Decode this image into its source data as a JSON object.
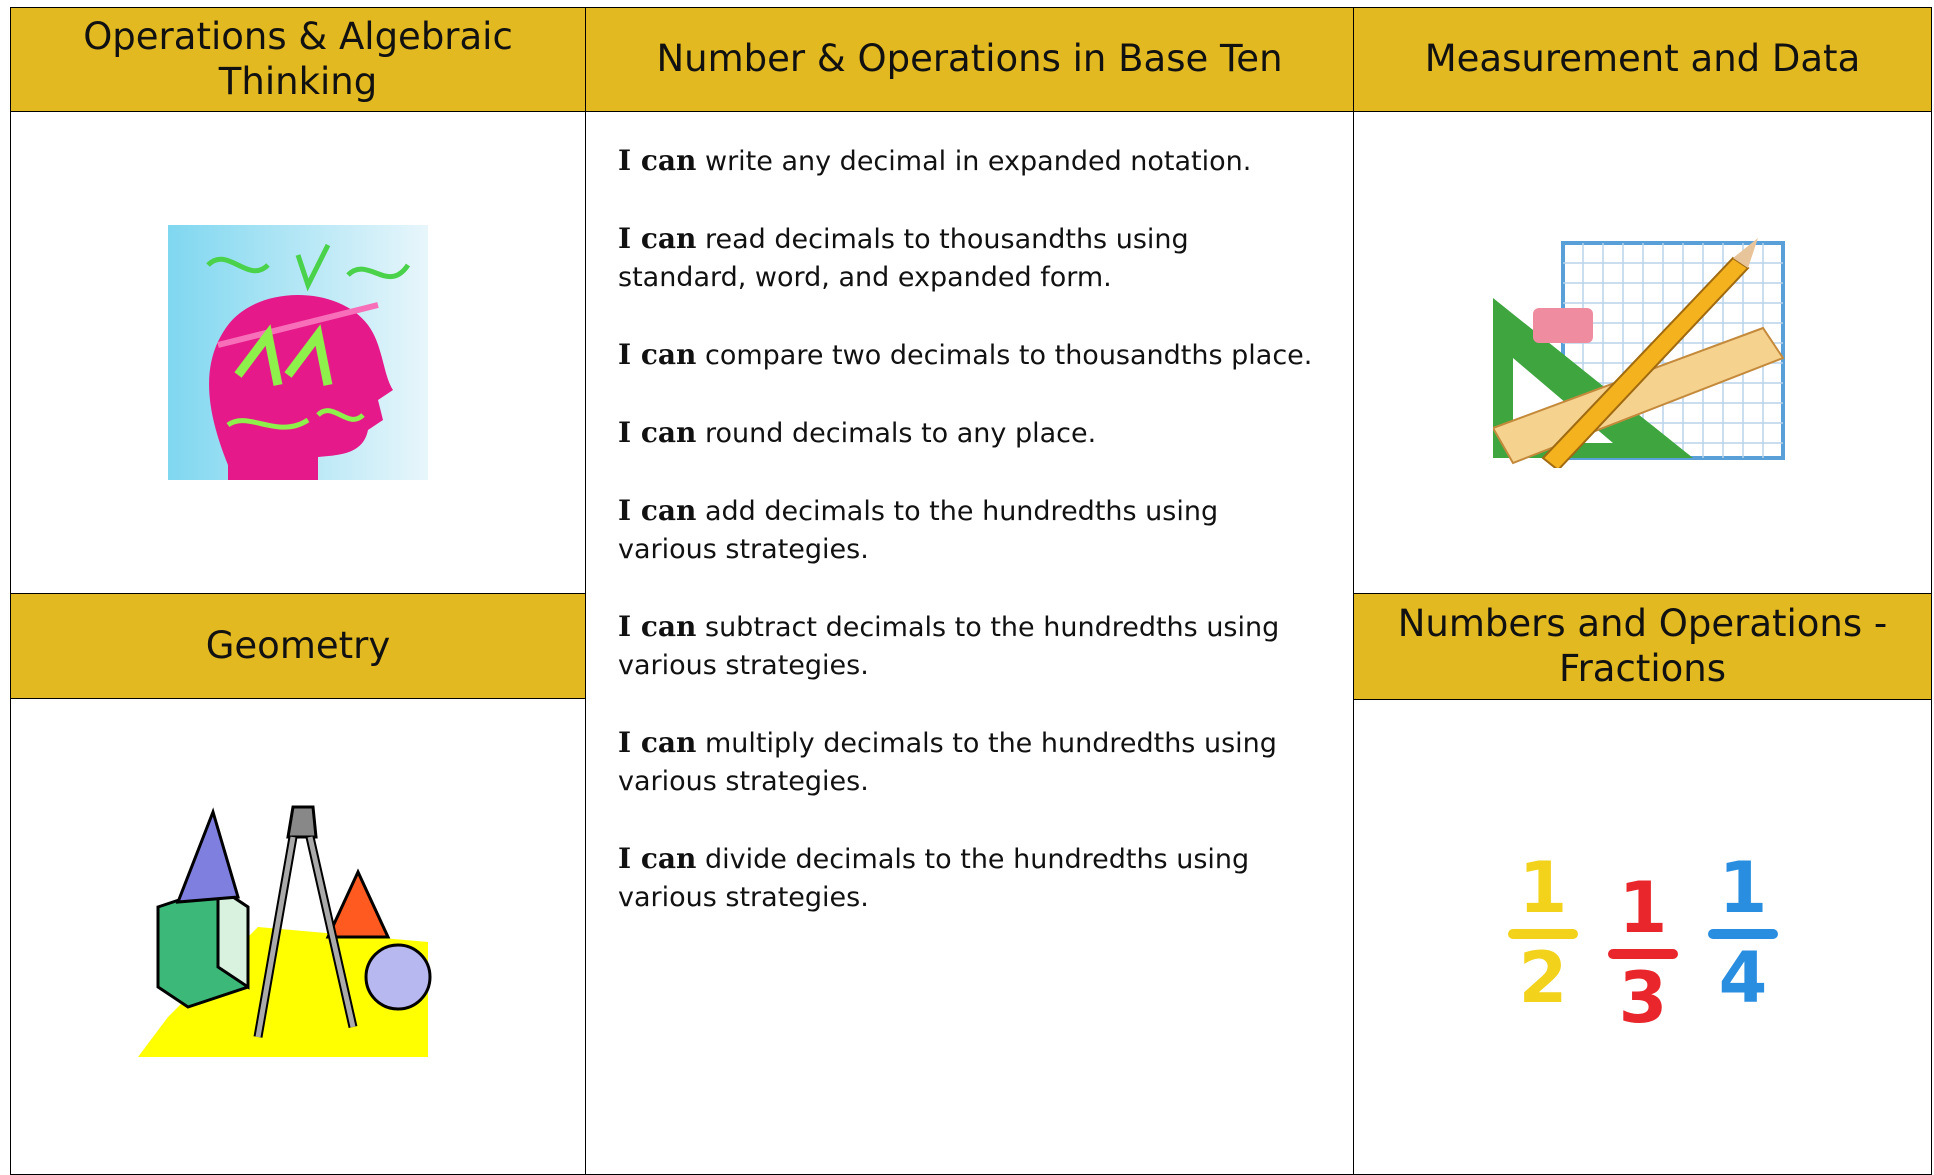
{
  "header": {
    "ops_algebraic": "Operations & Algebraic Thinking",
    "base_ten": "Number & Operations in Base Ten",
    "measurement": "Measurement and Data",
    "geometry": "Geometry",
    "fractions": "Numbers and Operations - Fractions"
  },
  "statements": [
    {
      "lead": "I can",
      "text": "write any decimal in expanded notation."
    },
    {
      "lead": "I can",
      "text": "read decimals to thousandths using standard, word, and expanded form."
    },
    {
      "lead": "I can",
      "text": "compare two decimals to thousandths place."
    },
    {
      "lead": "I can",
      "text": "round decimals to any place."
    },
    {
      "lead": "I can",
      "text": "add decimals to the hundredths using various strategies."
    },
    {
      "lead": "I can",
      "text": "subtract decimals to the hundredths using various strategies."
    },
    {
      "lead": "I can",
      "text": "multiply decimals to the hundredths using various strategies."
    },
    {
      "lead": "I can",
      "text": "divide decimals to the hundredths using various strategies."
    }
  ],
  "fraction_image": [
    {
      "num": "1",
      "den": "2"
    },
    {
      "num": "1",
      "den": "3"
    },
    {
      "num": "1",
      "den": "4"
    }
  ]
}
